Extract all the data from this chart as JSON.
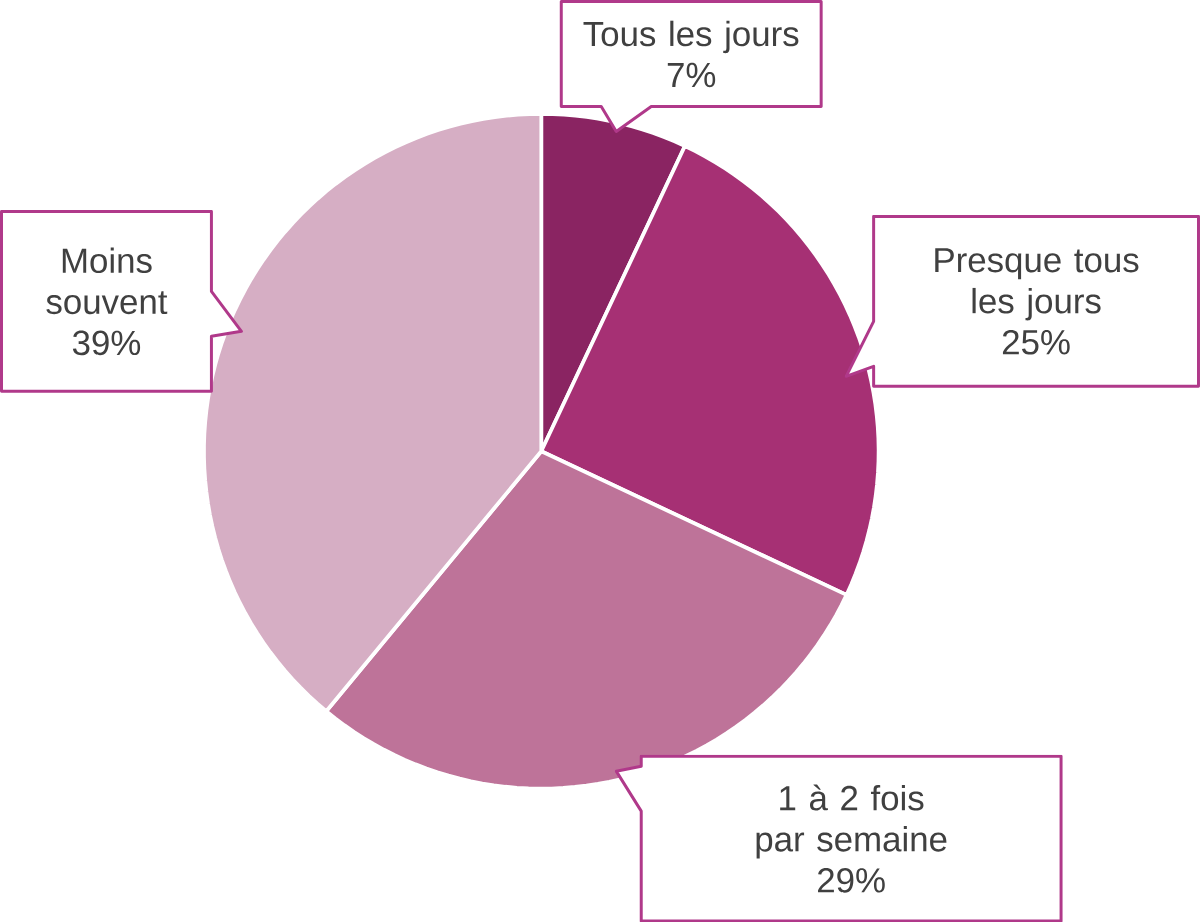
{
  "chart_data": {
    "type": "pie",
    "categories": [
      "Tous les jours",
      "Presque tous les jours",
      "1 à 2 fois par semaine",
      "Moins souvent"
    ],
    "values": [
      7,
      25,
      29,
      39
    ],
    "colors": [
      "#8a2462",
      "#a63074",
      "#be7399",
      "#d6aec4"
    ],
    "value_labels": [
      "7%",
      "25%",
      "29%",
      "39%"
    ]
  }
}
